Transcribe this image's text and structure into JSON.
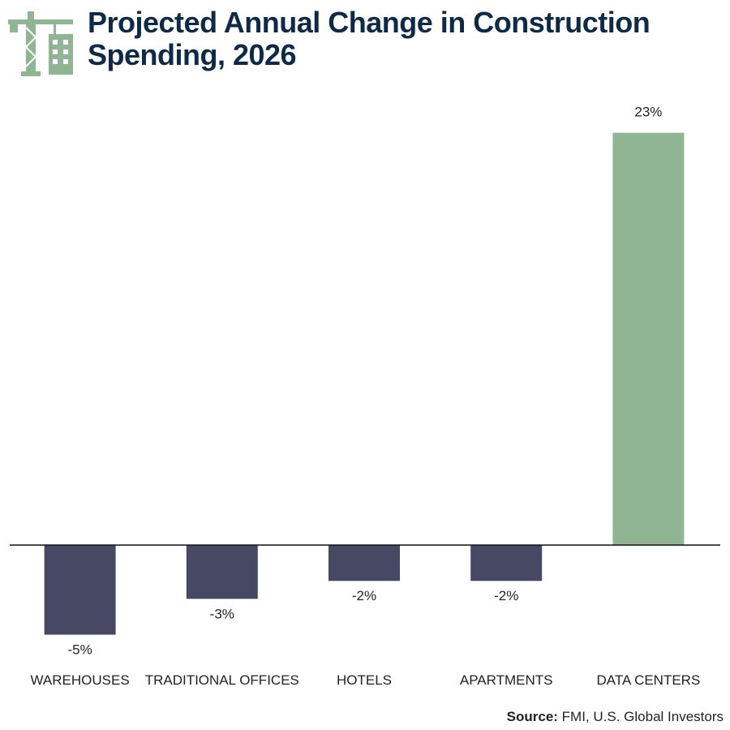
{
  "header": {
    "title": "Projected Annual Change in Construction Spending, 2026",
    "logo_icon": "crane-building-icon",
    "logo_color": "#90b593"
  },
  "chart_data": {
    "type": "bar",
    "title": "Projected Annual Change in Construction Spending, 2026",
    "categories": [
      "WAREHOUSES",
      "TRADITIONAL OFFICES",
      "HOTELS",
      "APARTMENTS",
      "DATA CENTERS"
    ],
    "values": [
      -5,
      -3,
      -2,
      -2,
      23
    ],
    "value_labels": [
      "-5%",
      "-3%",
      "-2%",
      "-2%",
      "23%"
    ],
    "value_unit": "%",
    "colors": {
      "negative": "#474964",
      "positive": "#90b593",
      "axis": "#111111",
      "text": "#222222"
    },
    "ylim": [
      -5.5,
      23
    ],
    "grid": false,
    "xlabel": "",
    "ylabel": ""
  },
  "footer": {
    "source_label": "Source:",
    "source_text": " FMI, U.S. Global Investors"
  }
}
